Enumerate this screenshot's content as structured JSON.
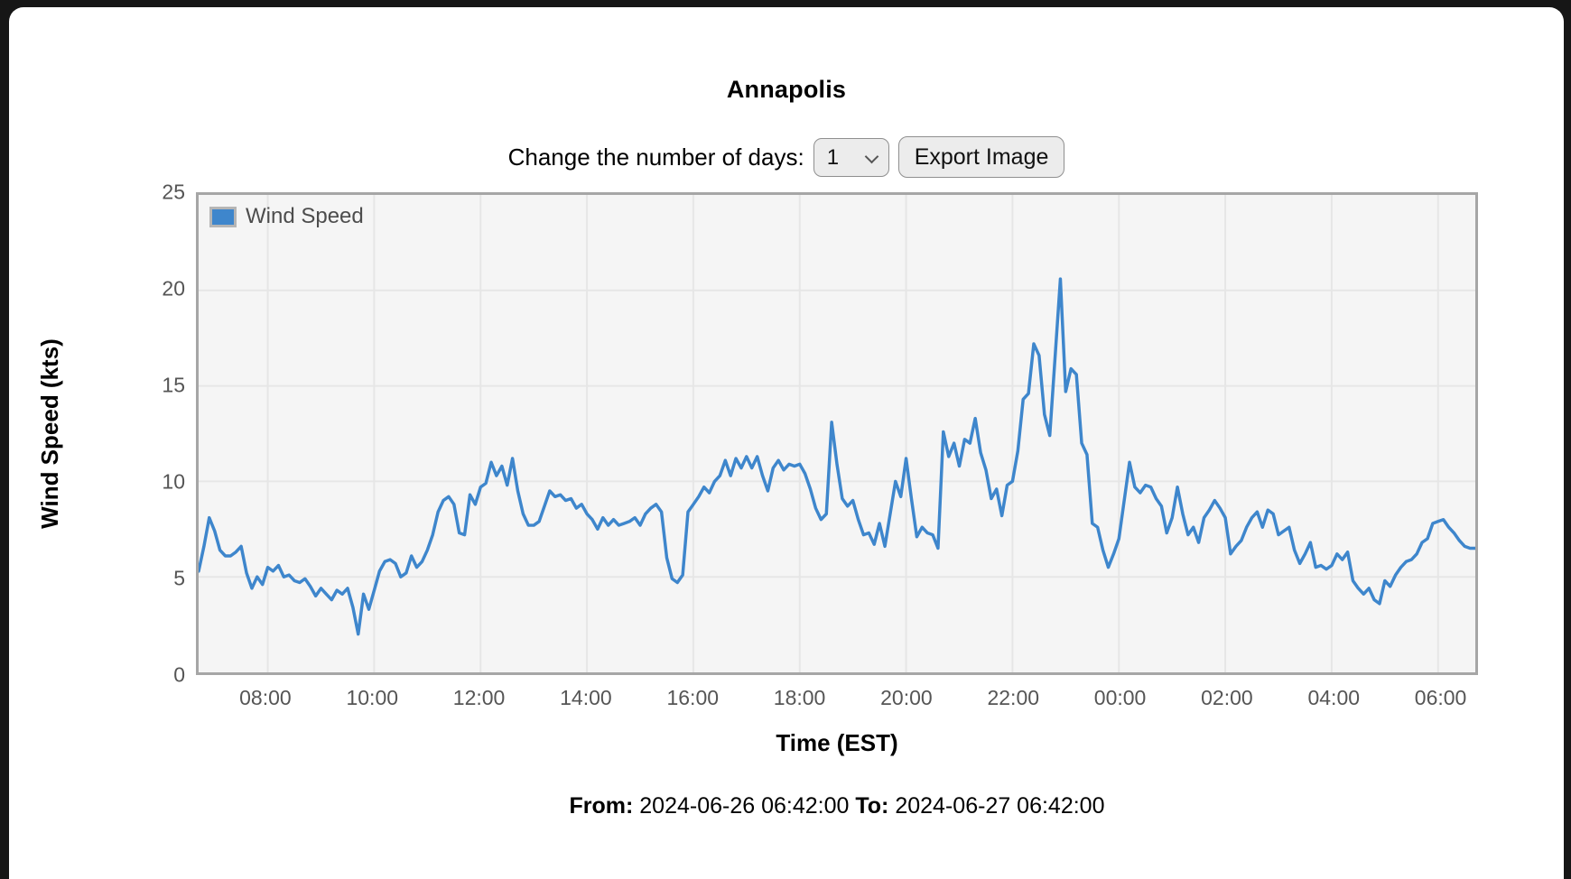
{
  "page": {
    "background": "#161616",
    "card_background": "#ffffff"
  },
  "header": {
    "title": "Annapolis"
  },
  "controls": {
    "label": "Change the number of days:",
    "days_select": {
      "value": "1",
      "options": [
        "1"
      ]
    },
    "export_button_label": "Export Image"
  },
  "footer": {
    "from_label": "From:",
    "from_value": "2024-06-26 06:42:00",
    "to_label": "To:",
    "to_value": "2024-06-27 06:42:00"
  },
  "chart_data": {
    "type": "line",
    "series_name": "Wind Speed",
    "xlabel": "Time (EST)",
    "ylabel": "Wind Speed (kts)",
    "ylim": [
      0,
      25
    ],
    "y_ticks": [
      0,
      5,
      10,
      15,
      20,
      25
    ],
    "x_start": "2024-06-26 06:42:00",
    "x_end": "2024-06-27 06:42:00",
    "sample_interval_minutes": 6,
    "x_tick_labels": [
      "08:00",
      "10:00",
      "12:00",
      "14:00",
      "16:00",
      "18:00",
      "20:00",
      "22:00",
      "00:00",
      "02:00",
      "04:00",
      "06:00"
    ],
    "x_tick_offsets_minutes": [
      78,
      198,
      318,
      438,
      558,
      678,
      798,
      918,
      1038,
      1158,
      1278,
      1398
    ],
    "line_color": "#3e86cc",
    "grid": true,
    "legend_position": "top-left",
    "plot_background": "#f5f5f5",
    "values": [
      5.3,
      6.6,
      8.1,
      7.4,
      6.4,
      6.1,
      6.1,
      6.3,
      6.6,
      5.2,
      4.4,
      5.0,
      4.6,
      5.5,
      5.3,
      5.6,
      5.0,
      5.1,
      4.8,
      4.7,
      4.9,
      4.5,
      4.0,
      4.4,
      4.1,
      3.8,
      4.3,
      4.1,
      4.4,
      3.4,
      2.0,
      4.1,
      3.3,
      4.3,
      5.3,
      5.8,
      5.9,
      5.7,
      5.0,
      5.2,
      6.1,
      5.5,
      5.8,
      6.4,
      7.2,
      8.4,
      9.0,
      9.2,
      8.8,
      7.3,
      7.2,
      9.3,
      8.8,
      9.7,
      9.9,
      11.0,
      10.3,
      10.8,
      9.8,
      11.2,
      9.5,
      8.3,
      7.7,
      7.7,
      7.9,
      8.7,
      9.5,
      9.2,
      9.3,
      9.0,
      9.1,
      8.6,
      8.8,
      8.3,
      8.0,
      7.5,
      8.1,
      7.7,
      8.0,
      7.7,
      7.8,
      7.9,
      8.1,
      7.7,
      8.3,
      8.6,
      8.8,
      8.4,
      6.0,
      4.9,
      4.7,
      5.1,
      8.4,
      8.8,
      9.2,
      9.7,
      9.4,
      10.0,
      10.3,
      11.1,
      10.3,
      11.2,
      10.7,
      11.3,
      10.7,
      11.3,
      10.3,
      9.5,
      10.7,
      11.1,
      10.6,
      10.9,
      10.8,
      10.9,
      10.4,
      9.6,
      8.6,
      8.0,
      8.3,
      13.1,
      10.9,
      9.1,
      8.7,
      9.0,
      8.0,
      7.2,
      7.3,
      6.7,
      7.8,
      6.6,
      8.3,
      10.0,
      9.2,
      11.2,
      9.1,
      7.1,
      7.6,
      7.3,
      7.2,
      6.5,
      12.6,
      11.3,
      12.0,
      10.8,
      12.2,
      12.0,
      13.3,
      11.5,
      10.6,
      9.1,
      9.6,
      8.2,
      9.8,
      10.0,
      11.6,
      14.3,
      14.6,
      17.2,
      16.6,
      13.5,
      12.4,
      16.5,
      20.6,
      14.7,
      15.9,
      15.6,
      12.0,
      11.4,
      7.8,
      7.6,
      6.4,
      5.5,
      6.2,
      7.0,
      9.0,
      11.0,
      9.7,
      9.4,
      9.8,
      9.7,
      9.1,
      8.7,
      7.3,
      8.1,
      9.7,
      8.3,
      7.2,
      7.6,
      6.8,
      8.1,
      8.5,
      9.0,
      8.6,
      8.1,
      6.2,
      6.6,
      6.9,
      7.6,
      8.1,
      8.4,
      7.6,
      8.5,
      8.3,
      7.2,
      7.4,
      7.6,
      6.4,
      5.7,
      6.2,
      6.8,
      5.5,
      5.6,
      5.4,
      5.6,
      6.2,
      5.9,
      6.3,
      4.8,
      4.4,
      4.1,
      4.4,
      3.8,
      3.6,
      4.8,
      4.5,
      5.1,
      5.5,
      5.8,
      5.9,
      6.2,
      6.8,
      7.0,
      7.8,
      7.9,
      8.0,
      7.6,
      7.3,
      6.9,
      6.6,
      6.5,
      6.5
    ]
  }
}
